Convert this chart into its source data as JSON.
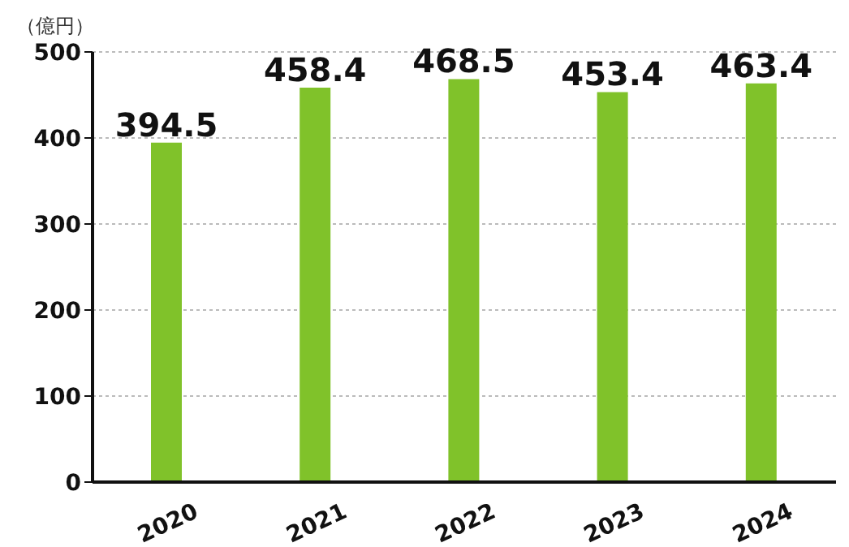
{
  "chart_data": {
    "type": "bar",
    "ylabel": "（億円）",
    "categories": [
      "2020",
      "2021",
      "2022",
      "2023",
      "2024"
    ],
    "values": [
      394.5,
      458.4,
      468.5,
      453.4,
      463.4
    ],
    "color": "#80c22a",
    "ylim": [
      0,
      500
    ],
    "yticks": [
      0,
      100,
      200,
      300,
      400,
      500
    ],
    "grid": "y",
    "data_labels": true
  }
}
